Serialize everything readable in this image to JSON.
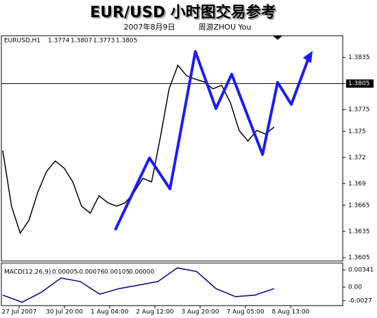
{
  "chart_data": [
    {
      "type": "line",
      "title": "EUR/USD 小时图交易参考",
      "subtitle": "2007年8月9日",
      "author": "周游ZHOU You",
      "header": {
        "symbol": "EURUSD,H1",
        "open": 1.3774,
        "high": 1.3807,
        "low": 1.3773,
        "close": 1.3805
      },
      "x_labels": [
        "27 Jul 2007",
        "30 Jul 20:00",
        "1 Aug 04:00",
        "2 Aug 12:00",
        "3 Aug 20:00",
        "7 Aug 05:00",
        "8 Aug 13:00"
      ],
      "ylim": [
        1.3601,
        1.386
      ],
      "yticks": [
        1.3605,
        1.3635,
        1.3665,
        1.369,
        1.372,
        1.375,
        1.3775,
        1.3805,
        1.3835
      ],
      "series": [
        {
          "color": "#000000",
          "values": [
            1.3728,
            1.3664,
            1.3633,
            1.3648,
            1.368,
            1.3704,
            1.3716,
            1.3708,
            1.3692,
            1.3664,
            1.3656,
            1.3676,
            1.3668,
            1.3664,
            1.3668,
            1.368,
            1.3696,
            1.3692,
            1.3743,
            1.3799,
            1.3826,
            1.3814,
            1.381,
            1.3807,
            1.3799,
            1.3803,
            1.3783,
            1.3751,
            1.3739,
            1.3751,
            1.3747,
            1.3755
          ]
        }
      ]
    },
    {
      "type": "line",
      "title": "MACD(12,26,9)",
      "header": [
        "0.00005",
        "-0.00076",
        "0.00105",
        "0.00000"
      ],
      "ylim": [
        -0.00368,
        0.00477
      ],
      "yticks": [
        -0.0027,
        {
          "value": 0,
          "label": "0.00"
        },
        0.00341
      ],
      "series": [
        {
          "color": "#000080",
          "values": [
            -0.0016,
            -0.003,
            -0.001,
            0.0018,
            0.0011,
            -0.0014,
            -0.0003,
            0.0004,
            0.0011,
            0.0038,
            0.0031,
            -0.0003,
            -0.0019,
            -0.0016,
            -0.0003
          ]
        }
      ]
    }
  ]
}
